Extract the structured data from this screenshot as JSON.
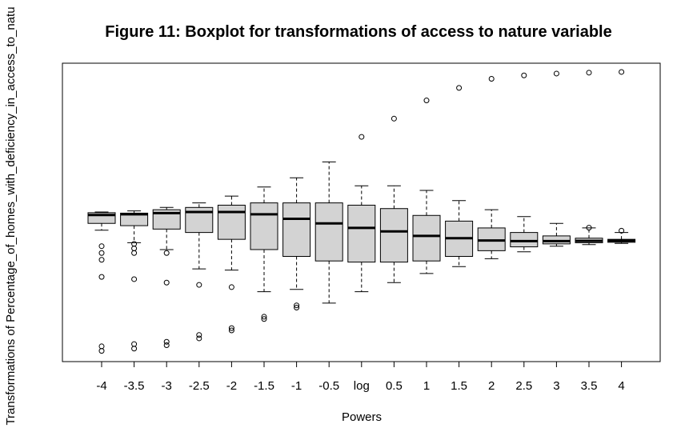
{
  "chart_data": {
    "type": "boxplot",
    "title": "Figure 11: Boxplot for transformations of access to nature variable",
    "xlabel": "Powers",
    "ylabel": "Transformations of Percentage_of_homes_with_deficiency_in_access_to_natu",
    "categories": [
      "-4",
      "-3.5",
      "-3",
      "-2.5",
      "-2",
      "-1.5",
      "-1",
      "-0.5",
      "log",
      "0.5",
      "1",
      "1.5",
      "2",
      "2.5",
      "3",
      "3.5",
      "4"
    ],
    "boxes": [
      {
        "category": "-4",
        "whisker_low": 0.57,
        "q1": 0.6,
        "median": 0.637,
        "q3": 0.647,
        "whisker_high": 0.65,
        "outliers": [
          0.5,
          0.47,
          0.44,
          0.365,
          0.06,
          0.04
        ]
      },
      {
        "category": "-3.5",
        "whisker_low": 0.515,
        "q1": 0.59,
        "median": 0.64,
        "q3": 0.645,
        "whisker_high": 0.655,
        "outliers": [
          0.51,
          0.49,
          0.47,
          0.355,
          0.07,
          0.05
        ]
      },
      {
        "category": "-3",
        "whisker_low": 0.485,
        "q1": 0.575,
        "median": 0.645,
        "q3": 0.66,
        "whisker_high": 0.67,
        "outliers": [
          0.47,
          0.34,
          0.08,
          0.065
        ]
      },
      {
        "category": "-2.5",
        "whisker_low": 0.4,
        "q1": 0.56,
        "median": 0.65,
        "q3": 0.67,
        "whisker_high": 0.69,
        "outliers": [
          0.33,
          0.11,
          0.095
        ]
      },
      {
        "category": "-2",
        "whisker_low": 0.395,
        "q1": 0.53,
        "median": 0.65,
        "q3": 0.68,
        "whisker_high": 0.72,
        "outliers": [
          0.32,
          0.14,
          0.13
        ]
      },
      {
        "category": "-1.5",
        "whisker_low": 0.3,
        "q1": 0.485,
        "median": 0.64,
        "q3": 0.69,
        "whisker_high": 0.76,
        "outliers": [
          0.19,
          0.18
        ]
      },
      {
        "category": "-1",
        "whisker_low": 0.31,
        "q1": 0.455,
        "median": 0.62,
        "q3": 0.69,
        "whisker_high": 0.8,
        "outliers": [
          0.24,
          0.23
        ]
      },
      {
        "category": "-0.5",
        "whisker_low": 0.25,
        "q1": 0.435,
        "median": 0.6,
        "q3": 0.69,
        "whisker_high": 0.87,
        "outliers": []
      },
      {
        "category": "log",
        "whisker_low": 0.3,
        "q1": 0.43,
        "median": 0.58,
        "q3": 0.68,
        "whisker_high": 0.765,
        "outliers": [
          0.98
        ]
      },
      {
        "category": "0.5",
        "whisker_low": 0.34,
        "q1": 0.43,
        "median": 0.565,
        "q3": 0.665,
        "whisker_high": 0.765,
        "outliers": [
          1.06
        ]
      },
      {
        "category": "1",
        "whisker_low": 0.38,
        "q1": 0.435,
        "median": 0.545,
        "q3": 0.635,
        "whisker_high": 0.745,
        "outliers": [
          1.14
        ]
      },
      {
        "category": "1.5",
        "whisker_low": 0.41,
        "q1": 0.455,
        "median": 0.535,
        "q3": 0.61,
        "whisker_high": 0.7,
        "outliers": [
          1.195
        ]
      },
      {
        "category": "2",
        "whisker_low": 0.445,
        "q1": 0.48,
        "median": 0.525,
        "q3": 0.58,
        "whisker_high": 0.66,
        "outliers": [
          1.235
        ]
      },
      {
        "category": "2.5",
        "whisker_low": 0.475,
        "q1": 0.497,
        "median": 0.522,
        "q3": 0.56,
        "whisker_high": 0.63,
        "outliers": [
          1.25
        ]
      },
      {
        "category": "3",
        "whisker_low": 0.5,
        "q1": 0.51,
        "median": 0.522,
        "q3": 0.545,
        "whisker_high": 0.6,
        "outliers": [
          1.258
        ]
      },
      {
        "category": "3.5",
        "whisker_low": 0.507,
        "q1": 0.515,
        "median": 0.523,
        "q3": 0.535,
        "whisker_high": 0.58,
        "outliers": [
          0.581,
          1.262
        ]
      },
      {
        "category": "4",
        "whisker_low": 0.512,
        "q1": 0.517,
        "median": 0.524,
        "q3": 0.53,
        "whisker_high": 0.56,
        "outliers": [
          0.568,
          1.265
        ]
      }
    ],
    "ylim": [
      0.0,
      1.3
    ],
    "y_ticks_shown": false,
    "grid": false,
    "legend": "none",
    "colors": {
      "box_fill": "#d3d3d3",
      "stroke": "#000000",
      "background": "#ffffff"
    }
  }
}
